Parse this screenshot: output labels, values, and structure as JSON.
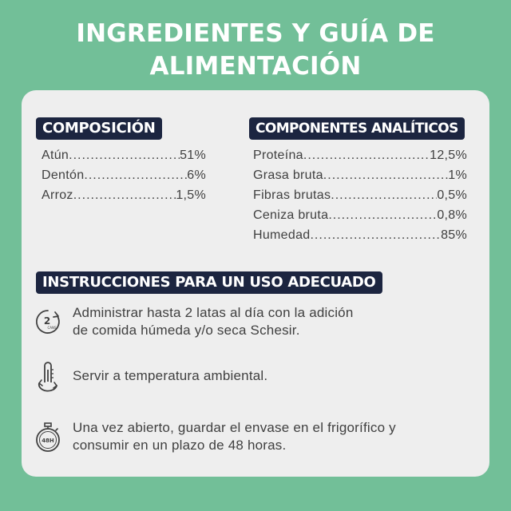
{
  "header": {
    "title_line1": "INGREDIENTES Y GUÍA DE",
    "title_line2": "ALIMENTACIÓN"
  },
  "composition": {
    "heading": "COMPOSICIÓN",
    "items": [
      {
        "name": "Atún",
        "value": "51%"
      },
      {
        "name": "Dentón",
        "value": "6%"
      },
      {
        "name": "Arroz",
        "value": "1,5%"
      }
    ]
  },
  "analytical": {
    "heading": "COMPONENTES ANALÍTICOS",
    "items": [
      {
        "name": "Proteína",
        "value": "12,5%"
      },
      {
        "name": "Grasa bruta",
        "value": "1%"
      },
      {
        "name": "Fibras brutas",
        "value": "0,5%"
      },
      {
        "name": "Ceniza bruta",
        "value": "0,8%"
      },
      {
        "name": "Humedad",
        "value": "85%"
      }
    ]
  },
  "instructions": {
    "heading": "INSTRUCCIONES PARA UN USO ADECUADO",
    "items": [
      {
        "icon": "two-cans-per-day-icon",
        "icon_text": "2",
        "icon_subtext": "CANS",
        "line1": "Administrar hasta 2 latas al día con la adición",
        "line2": "de comida húmeda y/o seca Schesir."
      },
      {
        "icon": "thermometer-icon",
        "line1": "Servir a temperatura ambiental.",
        "line2": ""
      },
      {
        "icon": "stopwatch-48h-icon",
        "icon_text": "48H",
        "line1": "Una vez abierto, guardar el envase en el frigorífico y",
        "line2": "consumir en un plazo de 48 horas."
      }
    ]
  },
  "colors": {
    "background": "#72bf98",
    "card": "#eeeeee",
    "tag": "#1c2540",
    "text": "#404040"
  }
}
